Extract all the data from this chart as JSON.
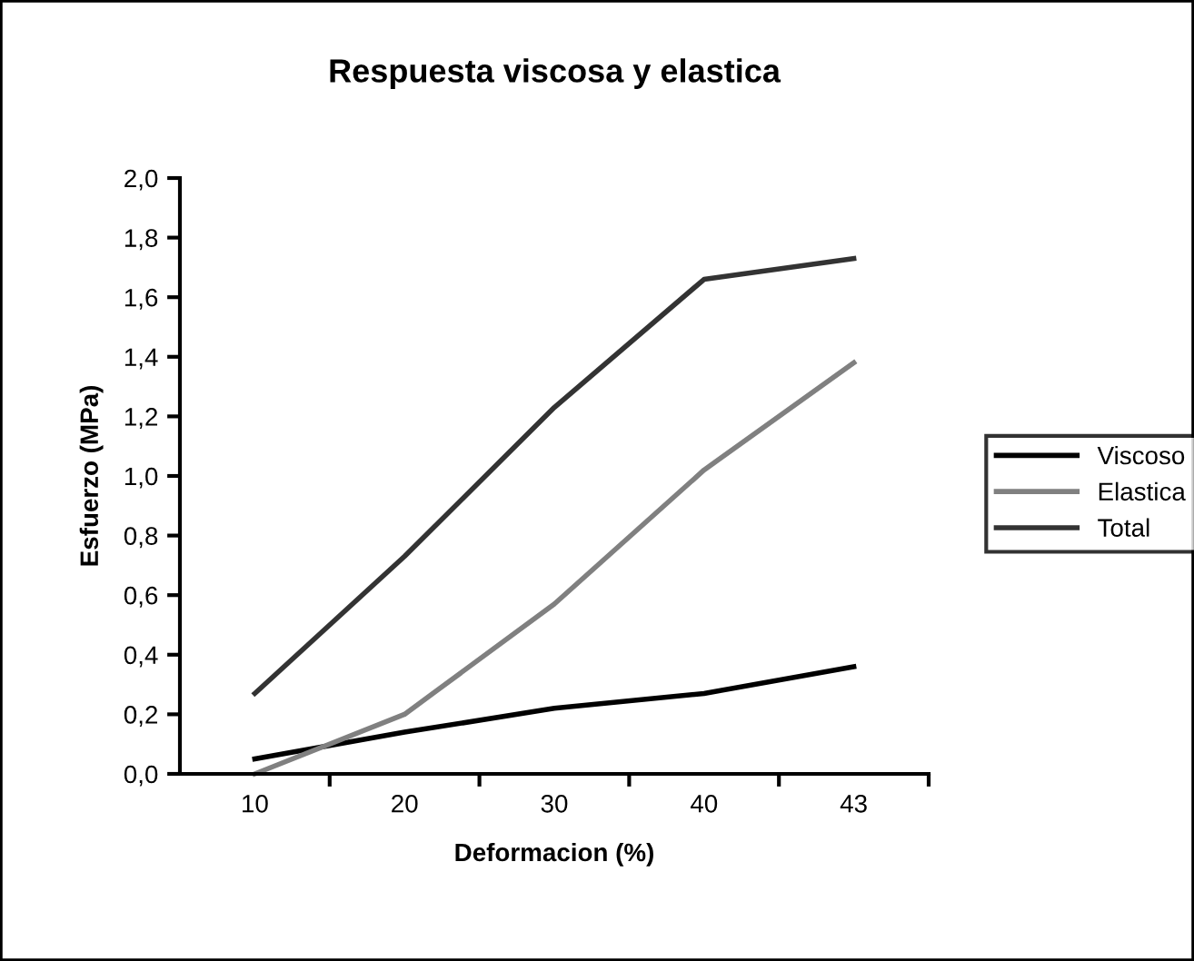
{
  "chart_data": {
    "type": "line",
    "title": "Respuesta viscosa y elastica",
    "xlabel": "Deformacion (%)",
    "ylabel": "Esfuerzo (MPa)",
    "categories": [
      "10",
      "20",
      "30",
      "40",
      "43"
    ],
    "series": [
      {
        "name": "Viscoso",
        "color": "#000000",
        "values": [
          0.05,
          0.14,
          0.22,
          0.27,
          0.36
        ]
      },
      {
        "name": "Elastica",
        "color": "#808080",
        "values": [
          0.0,
          0.2,
          0.57,
          1.02,
          1.38
        ]
      },
      {
        "name": "Total",
        "color": "#333333",
        "values": [
          0.27,
          0.73,
          1.23,
          1.66,
          1.73
        ]
      }
    ],
    "ylim": [
      0,
      2.0
    ],
    "yticks": [
      {
        "value": 0,
        "label": "0,0"
      },
      {
        "value": 0.2,
        "label": "0,2"
      },
      {
        "value": 0.4,
        "label": "0,4"
      },
      {
        "value": 0.6,
        "label": "0,6"
      },
      {
        "value": 0.8,
        "label": "0,8"
      },
      {
        "value": 1.0,
        "label": "1,0"
      },
      {
        "value": 1.2,
        "label": "1,2"
      },
      {
        "value": 1.4,
        "label": "1,4"
      },
      {
        "value": 1.6,
        "label": "1,6"
      },
      {
        "value": 1.8,
        "label": "1,8"
      },
      {
        "value": 2.0,
        "label": "2,0"
      }
    ],
    "legend": "right",
    "grid": false,
    "marker": "none",
    "line_style": "solid"
  }
}
